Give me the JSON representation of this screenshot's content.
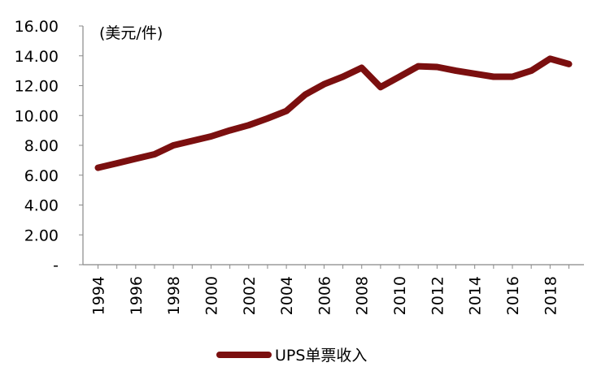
{
  "chart_data": {
    "type": "line",
    "title": "",
    "xlabel": "",
    "ylabel": "",
    "unit_label": "(美元/件)",
    "ylim": [
      0,
      16
    ],
    "y_ticks": [
      {
        "value": 0,
        "label": "-"
      },
      {
        "value": 2,
        "label": "2.00"
      },
      {
        "value": 4,
        "label": "4.00"
      },
      {
        "value": 6,
        "label": "6.00"
      },
      {
        "value": 8,
        "label": "8.00"
      },
      {
        "value": 10,
        "label": "10.00"
      },
      {
        "value": 12,
        "label": "12.00"
      },
      {
        "value": 14,
        "label": "14.00"
      },
      {
        "value": 16,
        "label": "16.00"
      }
    ],
    "x_tick_labels": [
      "1994",
      "1996",
      "1998",
      "2000",
      "2002",
      "2004",
      "2006",
      "2008",
      "2010",
      "2012",
      "2014",
      "2016",
      "2018"
    ],
    "legend_position": "bottom",
    "grid": false,
    "series": [
      {
        "name": "UPS单票收入",
        "color": "#7b0f0f",
        "x": [
          1994,
          1995,
          1996,
          1997,
          1998,
          1999,
          2000,
          2001,
          2002,
          2003,
          2004,
          2005,
          2006,
          2007,
          2008,
          2009,
          2010,
          2011,
          2012,
          2013,
          2014,
          2015,
          2016,
          2017,
          2018,
          2019
        ],
        "values": [
          6.5,
          6.8,
          7.1,
          7.4,
          8.0,
          8.3,
          8.6,
          9.0,
          9.35,
          9.8,
          10.3,
          11.4,
          12.1,
          12.6,
          13.2,
          11.9,
          12.6,
          13.3,
          13.25,
          13.0,
          12.8,
          12.6,
          12.6,
          13.0,
          13.8,
          13.45
        ]
      }
    ]
  }
}
